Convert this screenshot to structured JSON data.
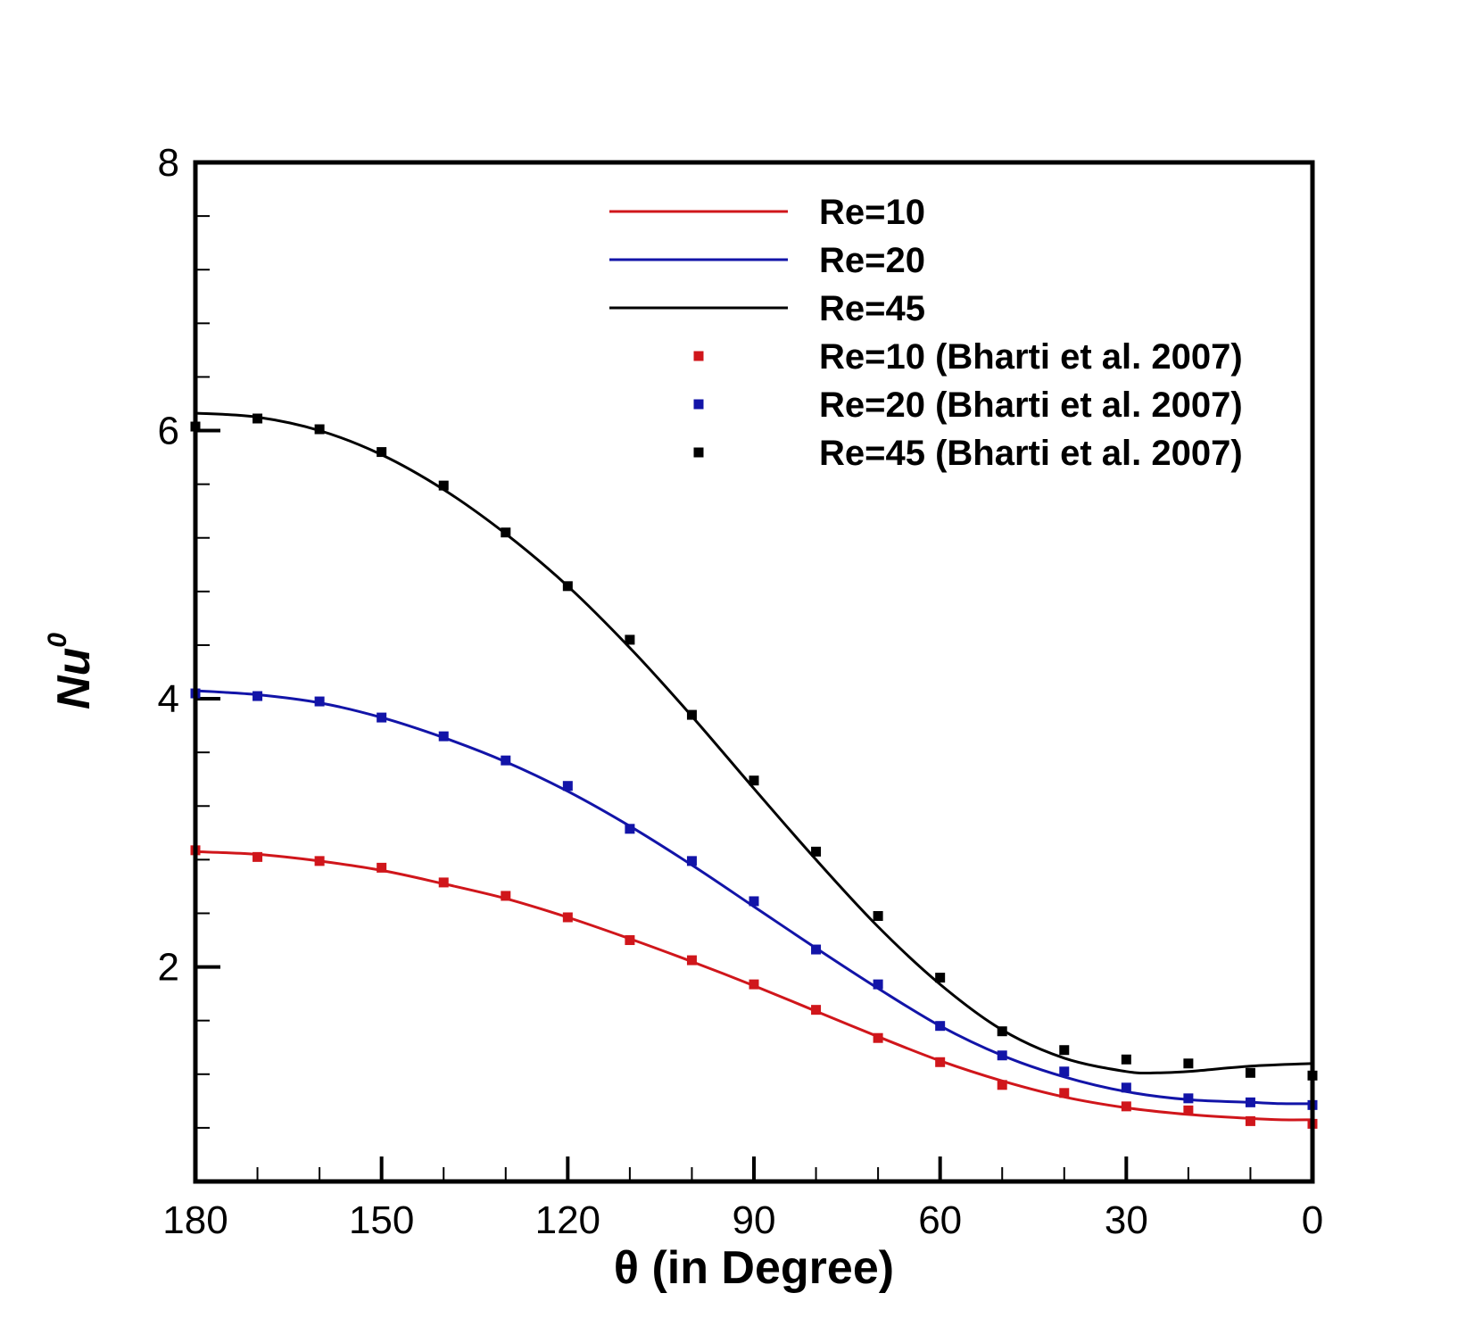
{
  "chart_data": {
    "type": "line",
    "title": "",
    "xlabel": "θ (in Degree)",
    "ylabel_base": "Nu",
    "ylabel_sup": "0",
    "xlim": [
      180,
      0
    ],
    "ylim": [
      0.4,
      8
    ],
    "x_major_ticks": [
      180,
      150,
      120,
      90,
      60,
      30,
      0
    ],
    "x_tick_labels": [
      "180",
      "150",
      "120",
      "90",
      "60",
      "30",
      "0"
    ],
    "x_minor_ticks": [
      170,
      160,
      140,
      130,
      110,
      100,
      80,
      70,
      50,
      40,
      20,
      10
    ],
    "y_major_ticks": [
      2,
      4,
      6,
      8
    ],
    "y_tick_labels": [
      "2",
      "4",
      "6",
      "8"
    ],
    "y_minor_ticks": [
      0.8,
      1.2,
      1.6,
      2.4,
      2.8,
      3.2,
      3.6,
      4.4,
      4.8,
      5.2,
      5.6,
      6.4,
      6.8,
      7.2,
      7.6
    ],
    "legend_position": "top-right",
    "series": [
      {
        "name": "Re=10",
        "kind": "line",
        "color": "#d0161b",
        "x": [
          180,
          170,
          160,
          150,
          140,
          130,
          120,
          110,
          100,
          90,
          80,
          70,
          60,
          50,
          40,
          30,
          20,
          10,
          5,
          0
        ],
        "y": [
          2.86,
          2.84,
          2.79,
          2.72,
          2.62,
          2.51,
          2.37,
          2.21,
          2.04,
          1.86,
          1.67,
          1.48,
          1.3,
          1.15,
          1.03,
          0.95,
          0.9,
          0.87,
          0.86,
          0.86
        ]
      },
      {
        "name": "Re=20",
        "kind": "line",
        "color": "#1214a8",
        "x": [
          180,
          170,
          160,
          150,
          140,
          130,
          120,
          110,
          100,
          90,
          80,
          70,
          60,
          50,
          40,
          30,
          20,
          10,
          5,
          0
        ],
        "y": [
          4.06,
          4.03,
          3.97,
          3.86,
          3.71,
          3.53,
          3.31,
          3.05,
          2.76,
          2.45,
          2.14,
          1.84,
          1.56,
          1.34,
          1.18,
          1.07,
          1.01,
          0.99,
          0.98,
          0.98
        ]
      },
      {
        "name": "Re=45",
        "kind": "line",
        "color": "#000000",
        "x": [
          180,
          170,
          160,
          150,
          140,
          130,
          120,
          110,
          100,
          90,
          80,
          70,
          60,
          50,
          40,
          30,
          25,
          20,
          10,
          0
        ],
        "y": [
          6.13,
          6.1,
          6.0,
          5.82,
          5.56,
          5.23,
          4.84,
          4.38,
          3.87,
          3.33,
          2.8,
          2.3,
          1.87,
          1.53,
          1.32,
          1.22,
          1.21,
          1.22,
          1.26,
          1.28
        ]
      },
      {
        "name": "Re=10 (Bharti et al. 2007)",
        "kind": "scatter",
        "color": "#d0161b",
        "x": [
          180,
          170,
          160,
          150,
          140,
          130,
          120,
          110,
          100,
          90,
          80,
          70,
          60,
          50,
          40,
          30,
          20,
          10,
          0
        ],
        "y": [
          2.87,
          2.82,
          2.79,
          2.74,
          2.63,
          2.53,
          2.37,
          2.2,
          2.05,
          1.87,
          1.68,
          1.47,
          1.29,
          1.12,
          1.06,
          0.96,
          0.93,
          0.85,
          0.83
        ]
      },
      {
        "name": "Re=20 (Bharti et al. 2007)",
        "kind": "scatter",
        "color": "#1214a8",
        "x": [
          180,
          170,
          160,
          150,
          140,
          130,
          120,
          110,
          100,
          90,
          80,
          70,
          60,
          50,
          40,
          30,
          20,
          10,
          0
        ],
        "y": [
          4.04,
          4.02,
          3.98,
          3.86,
          3.72,
          3.54,
          3.35,
          3.03,
          2.79,
          2.49,
          2.13,
          1.87,
          1.56,
          1.34,
          1.22,
          1.1,
          1.02,
          0.99,
          0.97
        ]
      },
      {
        "name": "Re=45 (Bharti et al. 2007)",
        "kind": "scatter",
        "color": "#000000",
        "x": [
          180,
          170,
          160,
          150,
          140,
          130,
          120,
          110,
          100,
          90,
          80,
          70,
          60,
          50,
          40,
          30,
          20,
          10,
          0
        ],
        "y": [
          6.03,
          6.09,
          6.01,
          5.84,
          5.59,
          5.24,
          4.84,
          4.44,
          3.88,
          3.39,
          2.86,
          2.38,
          1.92,
          1.52,
          1.38,
          1.31,
          1.28,
          1.21,
          1.19
        ]
      }
    ]
  }
}
